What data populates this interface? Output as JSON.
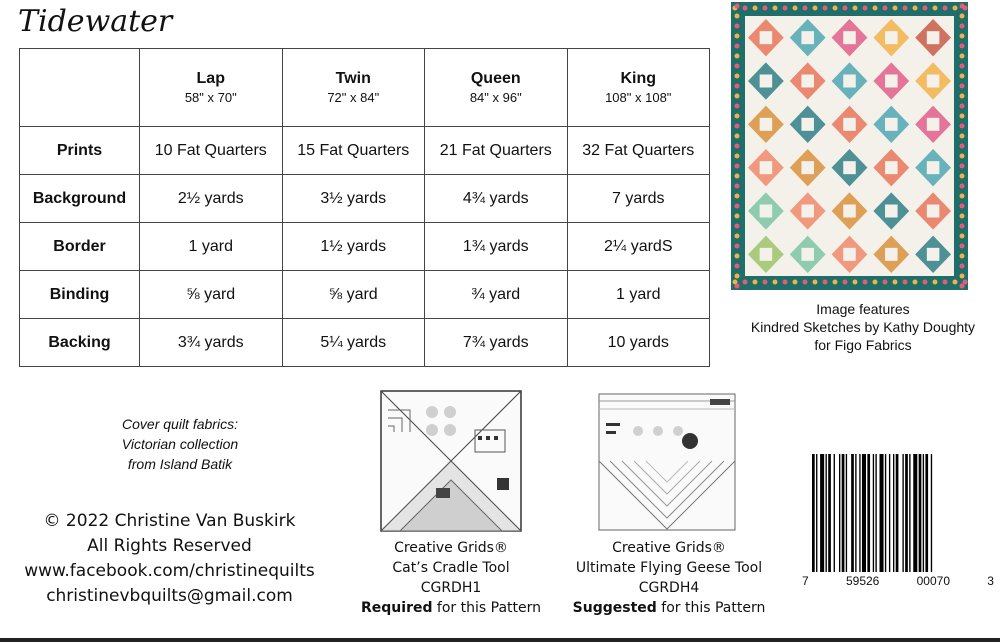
{
  "title": "Tidewater",
  "table": {
    "sizes": [
      {
        "name": "Lap",
        "dims": "58\" x 70\""
      },
      {
        "name": "Twin",
        "dims": "72\" x 84\""
      },
      {
        "name": "Queen",
        "dims": "84\" x 96\""
      },
      {
        "name": "King",
        "dims": "108\" x 108\""
      }
    ],
    "rows": [
      {
        "label": "Prints",
        "values": [
          "10 Fat Quarters",
          "15 Fat Quarters",
          "21 Fat Quarters",
          "32 Fat Quarters"
        ]
      },
      {
        "label": "Background",
        "values": [
          "2½  yards",
          "3½ yards",
          "4¾ yards",
          "7 yards"
        ]
      },
      {
        "label": "Border",
        "values": [
          "1 yard",
          "1½ yards",
          "1¾ yards",
          "2¼ yardS"
        ]
      },
      {
        "label": "Binding",
        "values": [
          "⅝ yard",
          "⅝ yard",
          "¾ yard",
          "1 yard"
        ]
      },
      {
        "label": "Backing",
        "values": [
          "3¾ yards",
          "5¼ yards",
          "7¾ yards",
          "10 yards"
        ]
      }
    ]
  },
  "image_caption": {
    "line1": "Image features",
    "line2": "Kindred Sketches by Kathy Doughty",
    "line3": "for Figo Fabrics"
  },
  "cover_note": {
    "line1": "Cover quilt fabrics:",
    "line2": "Victorian collection",
    "line3": "from Island Batik"
  },
  "copyright": {
    "line1": "© 2022 Christine Van Buskirk",
    "line2": "All Rights Reserved",
    "line3": "www.facebook.com/christinequilts",
    "line4": "christinevbquilts@gmail.com"
  },
  "tools": [
    {
      "brand": "Creative Grids®",
      "name": "Cat’s Cradle Tool",
      "code": "CGRDH1",
      "status": "Required",
      "suffix": " for this Pattern"
    },
    {
      "brand": "Creative Grids®",
      "name": "Ultimate Flying Geese  Tool",
      "code": "CGRDH4",
      "status": "Suggested",
      "suffix": " for this Pattern"
    }
  ],
  "barcode": {
    "digits": [
      "7",
      "59526",
      "00070",
      "3"
    ]
  },
  "colors": {
    "quilt_border": "#1f6e6a",
    "quilt_background": "#f3f1ea"
  }
}
